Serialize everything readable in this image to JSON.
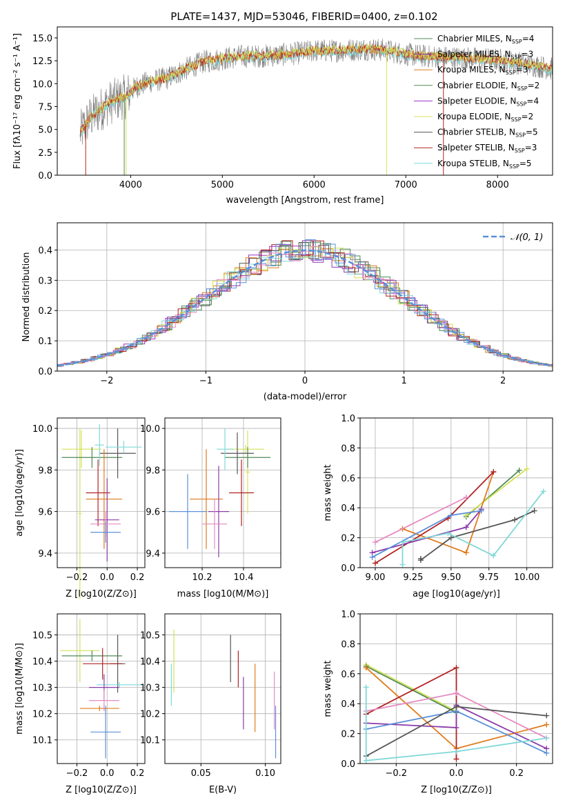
{
  "title": "PLATE=1437, MJD=53046, FIBERID=0400, z=0.102",
  "colors": {
    "chabrier_miles": "#4e8a55",
    "salpeter_miles": "#8b3aa8",
    "kroupa_miles": "#e07b1a",
    "chabrier_elodie": "#4e8a55",
    "salpeter_elodie": "#9932cc",
    "kroupa_elodie": "#d4e157",
    "chabrier_stelib": "#555555",
    "salpeter_stelib": "#b22222",
    "kroupa_stelib": "#7fd8d8",
    "blue": "#5b8fd9",
    "pink": "#e58ac0",
    "gaussian": "#5b8fd9"
  },
  "chart_data": [
    {
      "id": "spectrum",
      "type": "line",
      "title": "PLATE=1437, MJD=53046, FIBERID=0400, z=0.102",
      "xlabel": "wavelength [Angstrom, rest frame]",
      "ylabel": "Flux [fλ10⁻¹⁷ erg cm⁻² s⁻¹ A⁻¹]",
      "xlim": [
        3200,
        8600
      ],
      "ylim": [
        0,
        16.2
      ],
      "xticks": [
        "4000",
        "5000",
        "6000",
        "7000",
        "8000"
      ],
      "yticks": [
        "0.0",
        "2.5",
        "5.0",
        "7.5",
        "10.0",
        "12.5",
        "15.0"
      ],
      "legend": [
        {
          "label": "Chabrier MILES, N",
          "sub": "SSP",
          "tail": "=4",
          "color": "#4e8a55"
        },
        {
          "label": "Salpeter MILES, N",
          "sub": "SSP",
          "tail": "=3",
          "color": "#8b3aa8"
        },
        {
          "label": "Kroupa MILES, N",
          "sub": "SSP",
          "tail": "=3",
          "color": "#e07b1a"
        },
        {
          "label": "Chabrier ELODIE, N",
          "sub": "SSP",
          "tail": "=2",
          "color": "#4e8a55"
        },
        {
          "label": "Salpeter ELODIE, N",
          "sub": "SSP",
          "tail": "=4",
          "color": "#9932cc"
        },
        {
          "label": "Kroupa ELODIE, N",
          "sub": "SSP",
          "tail": "=2",
          "color": "#d4e157"
        },
        {
          "label": "Chabrier STELIB, N",
          "sub": "SSP",
          "tail": "=5",
          "color": "#555555"
        },
        {
          "label": "Salpeter STELIB, N",
          "sub": "SSP",
          "tail": "=3",
          "color": "#b22222"
        },
        {
          "label": "Kroupa STELIB, N",
          "sub": "SSP",
          "tail": "=5",
          "color": "#7fd8d8"
        }
      ],
      "continuum": [
        [
          3450,
          4.6
        ],
        [
          3550,
          6.2
        ],
        [
          3650,
          7.0
        ],
        [
          3750,
          7.8
        ],
        [
          3850,
          8.3
        ],
        [
          3950,
          8.6
        ],
        [
          4050,
          9.6
        ],
        [
          4200,
          10.2
        ],
        [
          4400,
          10.6
        ],
        [
          4600,
          11.6
        ],
        [
          4800,
          12.4
        ],
        [
          5000,
          12.7
        ],
        [
          5200,
          13.0
        ],
        [
          5400,
          13.0
        ],
        [
          5600,
          13.1
        ],
        [
          5800,
          13.3
        ],
        [
          6000,
          13.6
        ],
        [
          6200,
          13.6
        ],
        [
          6400,
          13.7
        ],
        [
          6600,
          13.8
        ],
        [
          6800,
          13.6
        ],
        [
          7000,
          13.2
        ],
        [
          7200,
          13.0
        ],
        [
          7400,
          12.9
        ],
        [
          7600,
          12.8
        ],
        [
          7800,
          12.7
        ],
        [
          8000,
          12.6
        ],
        [
          8200,
          12.3
        ],
        [
          8400,
          12.0
        ],
        [
          8600,
          11.6
        ]
      ]
    },
    {
      "id": "residuals",
      "type": "bar",
      "xlabel": "(data-model)/error",
      "ylabel": "Normed distribution",
      "xlim": [
        -2.5,
        2.5
      ],
      "ylim": [
        0,
        0.49
      ],
      "xticks": [
        "−2",
        "−1",
        "0",
        "1",
        "2"
      ],
      "yticks": [
        "0.0",
        "0.1",
        "0.2",
        "0.3",
        "0.4"
      ],
      "legend": [
        {
          "label": "𝒩(0, 1)",
          "color": "#5b8fd9"
        }
      ],
      "gaussian": {
        "mean": 0,
        "sigma": 1
      }
    },
    {
      "id": "z_age",
      "type": "scatter",
      "xlabel": "Z [log10(Z/Z⊙)]",
      "ylabel": "age [log10(age/yr)]",
      "xlim": [
        -0.33,
        0.25
      ],
      "ylim": [
        9.33,
        10.05
      ],
      "xticks": [
        "−0.2",
        "0.0",
        "0.2"
      ],
      "yticks": [
        "9.4",
        "9.6",
        "9.8",
        "10.0"
      ],
      "points": [
        {
          "x": -0.18,
          "y": 9.59,
          "xerr": 0.01,
          "yerr": 0.41,
          "color": "#d4e157"
        },
        {
          "x": -0.17,
          "y": 9.9,
          "xerr": 0.13,
          "yerr": 0.09,
          "color": "#d4e157"
        },
        {
          "x": -0.1,
          "y": 9.86,
          "xerr": 0.2,
          "yerr": 0.05,
          "color": "#4e8a55"
        },
        {
          "x": 0.07,
          "y": 9.88,
          "xerr": 0.12,
          "yerr": 0.12,
          "color": "#555555"
        },
        {
          "x": 0.11,
          "y": 9.91,
          "xerr": 0.12,
          "yerr": 0.03,
          "color": "#7fd8d8"
        },
        {
          "x": -0.05,
          "y": 9.92,
          "xerr": 0.03,
          "yerr": 0.1,
          "color": "#7fd8d8"
        },
        {
          "x": -0.02,
          "y": 9.66,
          "xerr": 0.12,
          "yerr": 0.24,
          "color": "#e07b1a"
        },
        {
          "x": -0.06,
          "y": 9.69,
          "xerr": 0.08,
          "yerr": 0.16,
          "color": "#b22222"
        },
        {
          "x": 0.0,
          "y": 9.56,
          "xerr": 0.08,
          "yerr": 0.2,
          "color": "#8b3aa8"
        },
        {
          "x": -0.01,
          "y": 9.54,
          "xerr": 0.1,
          "yerr": 0.06,
          "color": "#e58ac0"
        },
        {
          "x": -0.01,
          "y": 9.5,
          "xerr": 0.1,
          "yerr": 0.05,
          "color": "#5b8fd9"
        }
      ]
    },
    {
      "id": "mass_age",
      "type": "scatter",
      "xlabel": "mass [log10(M/M⊙)]",
      "ylabel": "",
      "xlim": [
        10.02,
        10.58
      ],
      "ylim": [
        9.33,
        10.05
      ],
      "xticks": [
        "10.2",
        "10.4"
      ],
      "yticks": [
        "9.4",
        "9.6",
        "9.8",
        "10.0"
      ],
      "points": [
        {
          "x": 10.41,
          "y": 9.9,
          "xerr": 0.09,
          "yerr": 0.02,
          "color": "#d4e157"
        },
        {
          "x": 10.42,
          "y": 9.79,
          "xerr": 0.01,
          "yerr": 0.2,
          "color": "#d4e157"
        },
        {
          "x": 10.42,
          "y": 9.86,
          "xerr": 0.11,
          "yerr": 0.05,
          "color": "#4e8a55"
        },
        {
          "x": 10.37,
          "y": 9.88,
          "xerr": 0.08,
          "yerr": 0.1,
          "color": "#555555"
        },
        {
          "x": 10.31,
          "y": 9.9,
          "xerr": 0.04,
          "yerr": 0.1,
          "color": "#7fd8d8"
        },
        {
          "x": 10.22,
          "y": 9.66,
          "xerr": 0.08,
          "yerr": 0.24,
          "color": "#e07b1a"
        },
        {
          "x": 10.39,
          "y": 9.69,
          "xerr": 0.06,
          "yerr": 0.16,
          "color": "#b22222"
        },
        {
          "x": 10.28,
          "y": 9.6,
          "xerr": 0.05,
          "yerr": 0.22,
          "color": "#8b3aa8"
        },
        {
          "x": 10.26,
          "y": 9.54,
          "xerr": 0.06,
          "yerr": 0.12,
          "color": "#e58ac0"
        },
        {
          "x": 10.13,
          "y": 9.6,
          "xerr": 0.09,
          "yerr": 0.18,
          "color": "#5b8fd9"
        }
      ]
    },
    {
      "id": "age_weight",
      "type": "line",
      "xlabel": "age [log10(age/yr)]",
      "ylabel": "mass weight",
      "xlim": [
        8.9,
        10.17
      ],
      "ylim": [
        0,
        1.0
      ],
      "xticks": [
        "9.00",
        "9.25",
        "9.50",
        "9.75",
        "10.00"
      ],
      "yticks": [
        "0.0",
        "0.2",
        "0.4",
        "0.6",
        "0.8",
        "1.0"
      ],
      "series": [
        {
          "color": "#4e8a55",
          "x": [
            9.6,
            9.95
          ],
          "y": [
            0.34,
            0.65
          ]
        },
        {
          "color": "#d4e157",
          "x": [
            9.6,
            10.0
          ],
          "y": [
            0.35,
            0.66
          ]
        },
        {
          "color": "#e07b1a",
          "x": [
            9.18,
            9.6,
            9.78
          ],
          "y": [
            0.26,
            0.1,
            0.64
          ]
        },
        {
          "color": "#b22222",
          "x": [
            9.0,
            9.48,
            9.78
          ],
          "y": [
            0.03,
            0.33,
            0.64
          ]
        },
        {
          "color": "#8b3aa8",
          "x": [
            8.98,
            9.6,
            9.7
          ],
          "y": [
            0.1,
            0.27,
            0.39
          ]
        },
        {
          "color": "#e58ac0",
          "x": [
            9.0,
            9.6
          ],
          "y": [
            0.17,
            0.47
          ]
        },
        {
          "color": "#5b8fd9",
          "x": [
            8.98,
            9.5,
            9.7
          ],
          "y": [
            0.07,
            0.35,
            0.38
          ]
        },
        {
          "color": "#555555",
          "x": [
            9.3,
            9.3,
            9.5,
            9.92,
            10.05
          ],
          "y": [
            0.06,
            0.05,
            0.2,
            0.32,
            0.38
          ]
        },
        {
          "color": "#7fd8d8",
          "x": [
            9.18,
            9.18,
            9.48,
            9.78,
            10.11
          ],
          "y": [
            0.02,
            0.17,
            0.23,
            0.08,
            0.51
          ]
        }
      ]
    },
    {
      "id": "z_mass",
      "type": "scatter",
      "xlabel": "Z [log10(Z/Z⊙)]",
      "ylabel": "mass [log10(M/M⊙)]",
      "xlim": [
        -0.33,
        0.25
      ],
      "ylim": [
        10.01,
        10.58
      ],
      "xticks": [
        "−0.2",
        "0.0",
        "0.2"
      ],
      "yticks": [
        "10.1",
        "10.2",
        "10.3",
        "10.4",
        "10.5"
      ],
      "points": [
        {
          "x": -0.18,
          "y": 10.44,
          "xerr": 0.13,
          "yerr": 0.12,
          "color": "#d4e157"
        },
        {
          "x": -0.1,
          "y": 10.42,
          "xerr": 0.2,
          "yerr": 0.02,
          "color": "#4e8a55"
        },
        {
          "x": 0.07,
          "y": 10.39,
          "xerr": 0.05,
          "yerr": 0.11,
          "color": "#555555"
        },
        {
          "x": -0.03,
          "y": 10.39,
          "xerr": 0.13,
          "yerr": 0.06,
          "color": "#b22222"
        },
        {
          "x": 0.08,
          "y": 10.31,
          "xerr": 0.15,
          "yerr": 0.01,
          "color": "#7fd8d8"
        },
        {
          "x": -0.02,
          "y": 10.3,
          "xerr": 0.1,
          "yerr": 0.05,
          "color": "#8b3aa8"
        },
        {
          "x": -0.02,
          "y": 10.25,
          "xerr": 0.1,
          "yerr": 0.04,
          "color": "#e58ac0"
        },
        {
          "x": -0.05,
          "y": 10.22,
          "xerr": 0.13,
          "yerr": 0.01,
          "color": "#e07b1a"
        },
        {
          "x": -0.01,
          "y": 10.13,
          "xerr": 0.1,
          "yerr": 0.1,
          "color": "#5b8fd9"
        }
      ]
    },
    {
      "id": "ebv_mass",
      "type": "scatter",
      "xlabel": "E(B-V)",
      "ylabel": "",
      "xlim": [
        0.022,
        0.112
      ],
      "ylim": [
        10.01,
        10.58
      ],
      "xticks": [
        "0.05",
        "0.10"
      ],
      "yticks": [
        "10.1",
        "10.2",
        "10.3",
        "10.4",
        "10.5"
      ],
      "points": [
        {
          "x": 0.027,
          "y": 10.31,
          "yerr": 0.08,
          "color": "#7fd8d8"
        },
        {
          "x": 0.029,
          "y": 10.4,
          "yerr": 0.12,
          "color": "#d4e157"
        },
        {
          "x": 0.073,
          "y": 10.41,
          "yerr": 0.09,
          "color": "#555555"
        },
        {
          "x": 0.079,
          "y": 10.37,
          "yerr": 0.07,
          "color": "#b22222"
        },
        {
          "x": 0.083,
          "y": 10.24,
          "yerr": 0.1,
          "color": "#8b3aa8"
        },
        {
          "x": 0.092,
          "y": 10.26,
          "yerr": 0.13,
          "color": "#e07b1a"
        },
        {
          "x": 0.107,
          "y": 10.25,
          "yerr": 0.11,
          "color": "#e58ac0"
        },
        {
          "x": 0.108,
          "y": 10.13,
          "yerr": 0.1,
          "color": "#5b8fd9"
        }
      ]
    },
    {
      "id": "z_weight",
      "type": "line",
      "xlabel": "Z [log10(Z/Z⊙)]",
      "ylabel": "mass weight",
      "xlim": [
        -0.32,
        0.32
      ],
      "ylim": [
        0,
        1.0
      ],
      "xticks": [
        "−0.2",
        "0.0",
        "0.2"
      ],
      "yticks": [
        "0.0",
        "0.2",
        "0.4",
        "0.6",
        "0.8",
        "1.0"
      ],
      "series": [
        {
          "color": "#d4e157",
          "x": [
            -0.3,
            0.0
          ],
          "y": [
            0.66,
            0.35
          ]
        },
        {
          "color": "#4e8a55",
          "x": [
            -0.3,
            0.0
          ],
          "y": [
            0.65,
            0.34
          ]
        },
        {
          "color": "#e07b1a",
          "x": [
            -0.3,
            0.0,
            0.3
          ],
          "y": [
            0.64,
            0.1,
            0.26
          ]
        },
        {
          "color": "#b22222",
          "x": [
            -0.3,
            0.0,
            0.0
          ],
          "y": [
            0.33,
            0.64,
            0.03
          ]
        },
        {
          "color": "#e58ac0",
          "x": [
            -0.3,
            0.0,
            0.3
          ],
          "y": [
            0.35,
            0.47,
            0.17
          ]
        },
        {
          "color": "#8b3aa8",
          "x": [
            -0.3,
            0.0,
            0.0,
            0.3
          ],
          "y": [
            0.27,
            0.24,
            0.39,
            0.1
          ]
        },
        {
          "color": "#5b8fd9",
          "x": [
            -0.3,
            0.0,
            0.3
          ],
          "y": [
            0.23,
            0.35,
            0.07
          ]
        },
        {
          "color": "#555555",
          "x": [
            -0.3,
            0.0,
            0.3
          ],
          "y": [
            0.05,
            0.38,
            0.32
          ]
        },
        {
          "color": "#7fd8d8",
          "x": [
            -0.3,
            -0.3,
            0.0,
            0.3
          ],
          "y": [
            0.51,
            0.02,
            0.08,
            0.17
          ]
        }
      ]
    }
  ]
}
